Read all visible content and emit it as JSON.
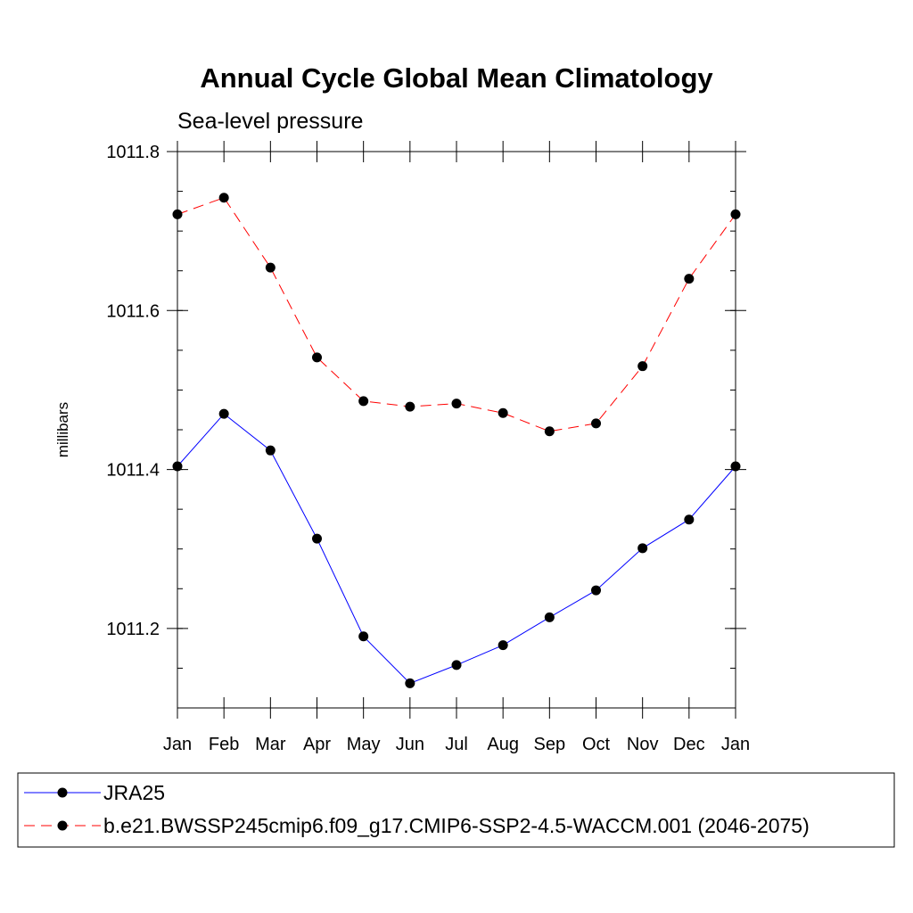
{
  "chart_data": {
    "type": "line",
    "title": "Annual Cycle Global Mean Climatology",
    "subtitle": "Sea-level pressure",
    "ylabel": "millibars",
    "xlabel": "",
    "categories": [
      "Jan",
      "Feb",
      "Mar",
      "Apr",
      "May",
      "Jun",
      "Jul",
      "Aug",
      "Sep",
      "Oct",
      "Nov",
      "Dec",
      "Jan"
    ],
    "ylim": [
      1011.1,
      1011.8
    ],
    "yticks": [
      {
        "value": 1011.2,
        "label": "1011.2"
      },
      {
        "value": 1011.4,
        "label": "1011.4"
      },
      {
        "value": 1011.6,
        "label": "1011.6"
      },
      {
        "value": 1011.8,
        "label": "1011.8"
      }
    ],
    "y_minor_step": 0.05,
    "grid": false,
    "legend_position": "bottom",
    "series": [
      {
        "name": "JRA25",
        "color": "#0000ff",
        "dash": "solid",
        "marker": "filled-circle",
        "values": [
          1011.404,
          1011.47,
          1011.424,
          1011.313,
          1011.19,
          1011.131,
          1011.154,
          1011.179,
          1011.214,
          1011.248,
          1011.301,
          1011.337,
          1011.404
        ]
      },
      {
        "name": "b.e21.BWSSP245cmip6.f09_g17.CMIP6-SSP2-4.5-WACCM.001 (2046-2075)",
        "color": "#ff0000",
        "dash": "dashed",
        "marker": "filled-circle",
        "values": [
          1011.721,
          1011.742,
          1011.654,
          1011.541,
          1011.486,
          1011.479,
          1011.483,
          1011.471,
          1011.448,
          1011.458,
          1011.53,
          1011.64,
          1011.721
        ]
      }
    ]
  }
}
